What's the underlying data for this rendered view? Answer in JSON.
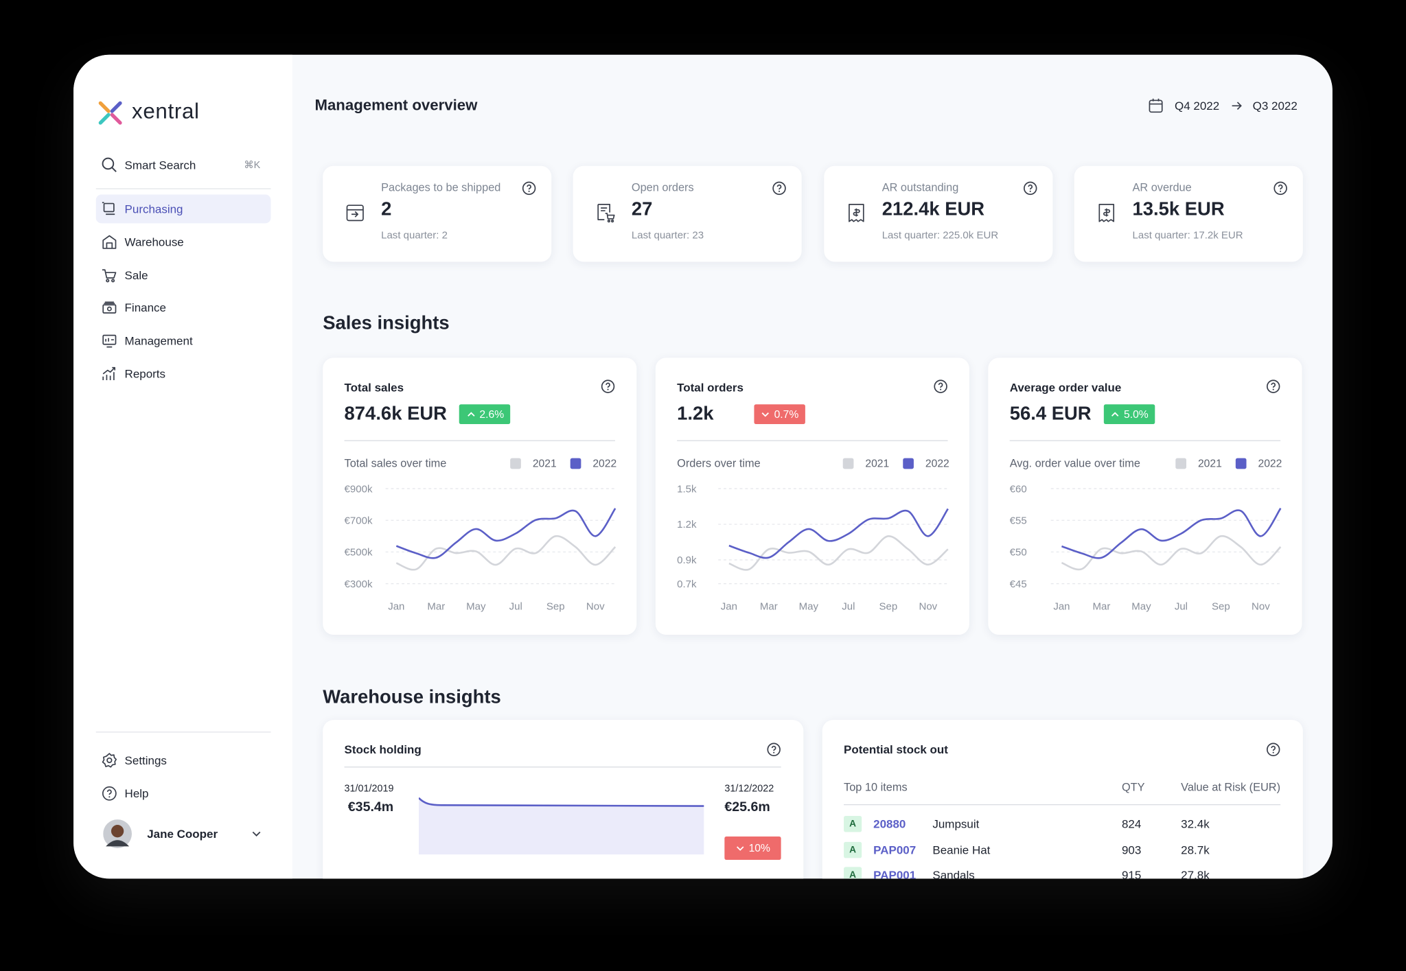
{
  "sidebar": {
    "brand": "xentral",
    "search": "Smart Search",
    "shortcut": "⌘K",
    "nav": [
      "Purchasing",
      "Warehouse",
      "Sale",
      "Finance",
      "Management",
      "Reports"
    ],
    "bottom_nav": [
      "Settings",
      "Help"
    ],
    "user": "Jane Cooper"
  },
  "header": {
    "title": "Management overview",
    "period_from": "Q4 2022",
    "period_to": "Q3 2022"
  },
  "kpis": [
    {
      "label": "Packages to be shipped",
      "value": "2",
      "previous": "Last quarter: 2"
    },
    {
      "label": "Open orders",
      "value": "27",
      "previous": "Last quarter: 23"
    },
    {
      "label": "AR outstanding",
      "value": "212.4k EUR",
      "previous": "Last quarter: 225.0k EUR"
    },
    {
      "label": "AR overdue",
      "value": "13.5k EUR",
      "previous": "Last quarter: 17.2k EUR"
    }
  ],
  "sales_title": "Sales insights",
  "chart_data": [
    {
      "type": "line",
      "title": "Total sales",
      "value": "874.6k EUR",
      "change": "2.6%",
      "trend": "up",
      "subtitle": "Total sales over time",
      "categories": [
        "Jan",
        null,
        "Mar",
        null,
        "May",
        null,
        "Jul",
        null,
        "Sep",
        null,
        "Nov",
        null
      ],
      "series": [
        {
          "name": "2021",
          "color": "#d3d5da",
          "values": [
            430000,
            391000,
            521000,
            493000,
            504000,
            419000,
            521000,
            493000,
            600000,
            532000,
            419000,
            532000
          ]
        },
        {
          "name": "2022",
          "color": "#5b5fc7",
          "values": [
            538000,
            492000,
            464000,
            560000,
            645000,
            572000,
            617000,
            702000,
            713000,
            758000,
            600000,
            775000
          ]
        }
      ],
      "ylim": [
        300000,
        900000
      ],
      "yticks": [
        {
          "value": 300000,
          "label": "€300k"
        },
        {
          "value": 500000,
          "label": "€500k"
        },
        {
          "value": 700000,
          "label": "€700k"
        },
        {
          "value": 900000,
          "label": "€900k"
        }
      ],
      "grid": true
    },
    {
      "type": "line",
      "title": "Total orders",
      "value": "1.2k",
      "change": "0.7%",
      "trend": "down",
      "subtitle": "Orders over time",
      "categories": [
        "Jan",
        null,
        "Mar",
        null,
        "May",
        null,
        "Jul",
        null,
        "Sep",
        null,
        "Nov",
        null
      ],
      "series": [
        {
          "name": "2021",
          "color": "#d3d5da",
          "values": [
            870,
            820,
            990,
            960,
            970,
            860,
            990,
            960,
            1100,
            990,
            860,
            990
          ]
        },
        {
          "name": "2022",
          "color": "#5b5fc7",
          "values": [
            1020,
            960,
            920,
            1050,
            1160,
            1060,
            1120,
            1240,
            1250,
            1310,
            1100,
            1330
          ]
        }
      ],
      "ylim": [
        700,
        1500
      ],
      "yticks": [
        {
          "value": 700,
          "label": "0.7k"
        },
        {
          "value": 900,
          "label": "0.9k"
        },
        {
          "value": 1200,
          "label": "1.2k"
        },
        {
          "value": 1500,
          "label": "1.5k"
        }
      ],
      "grid": true
    },
    {
      "type": "line",
      "title": "Average order value",
      "value": "56.4 EUR",
      "change": "5.0%",
      "trend": "up",
      "subtitle": "Avg. order value over time",
      "categories": [
        "Jan",
        null,
        "Mar",
        null,
        "May",
        null,
        "Jul",
        null,
        "Sep",
        null,
        "Nov",
        null
      ],
      "series": [
        {
          "name": "2021",
          "color": "#d3d5da",
          "values": [
            48.3,
            47.3,
            50.5,
            49.8,
            50.1,
            48.0,
            50.5,
            49.8,
            52.5,
            50.8,
            48.0,
            50.8
          ]
        },
        {
          "name": "2022",
          "color": "#5b5fc7",
          "values": [
            50.9,
            49.8,
            49.1,
            51.5,
            53.6,
            51.8,
            52.9,
            55.0,
            55.3,
            56.5,
            52.5,
            56.9
          ]
        }
      ],
      "ylim": [
        45,
        60
      ],
      "yticks": [
        {
          "value": 45,
          "label": "€45"
        },
        {
          "value": 50,
          "label": "€50"
        },
        {
          "value": 55,
          "label": "€55"
        },
        {
          "value": 60,
          "label": "€60"
        }
      ],
      "grid": true
    }
  ],
  "warehouse_title": "Warehouse insights",
  "stock_holding": {
    "title": "Stock holding",
    "start_date": "31/01/2019",
    "start_value": "€35.4m",
    "end_date": "31/12/2022",
    "end_value": "€25.6m",
    "change": "10%",
    "trend": "down"
  },
  "stock_out": {
    "title": "Potential stock out",
    "headers": [
      "Top 10 items",
      "QTY",
      "Value at Risk (EUR)"
    ],
    "rows": [
      [
        "A",
        "20880",
        "Jumpsuit",
        "824",
        "32.4k"
      ],
      [
        "A",
        "PAP007",
        "Beanie Hat",
        "903",
        "28.7k"
      ],
      [
        "A",
        "PAP001",
        "Sandals",
        "915",
        "27.8k"
      ]
    ]
  }
}
